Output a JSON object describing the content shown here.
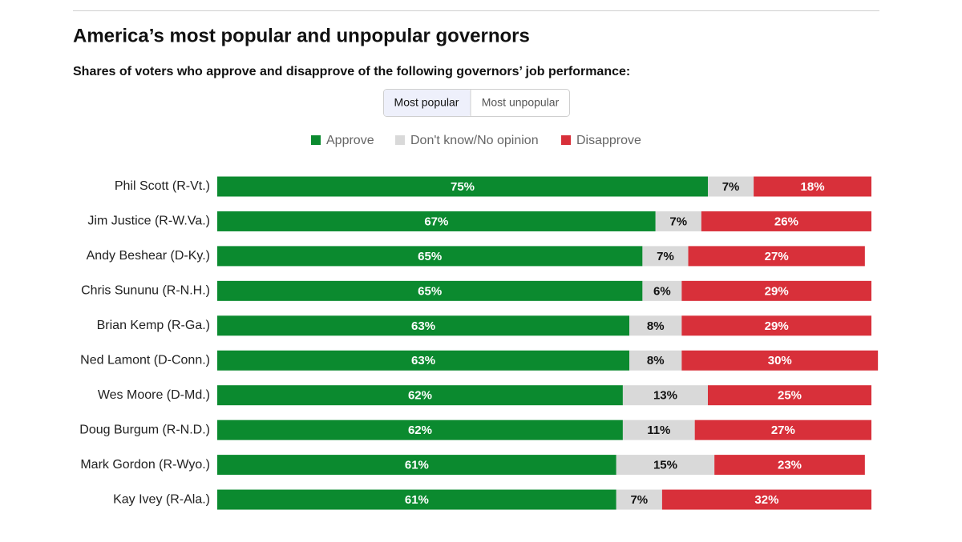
{
  "ui": {
    "tabs": [
      "Most popular",
      "Most unpopular"
    ]
  },
  "chart_data": {
    "type": "stacked-bar-horizontal",
    "title": "America’s most popular and unpopular governors",
    "subtitle": "Shares of voters who approve and disapprove of the following governors’ job performance:",
    "categories": [
      "Phil Scott (R-Vt.)",
      "Jim Justice (R-W.Va.)",
      "Andy Beshear (D-Ky.)",
      "Chris Sununu (R-N.H.)",
      "Brian Kemp (R-Ga.)",
      "Ned Lamont (D-Conn.)",
      "Wes Moore (D-Md.)",
      "Doug Burgum (R-N.D.)",
      "Mark Gordon (R-Wyo.)",
      "Kay Ivey (R-Ala.)"
    ],
    "series": [
      {
        "name": "Approve",
        "color": "#0b8a2f",
        "values": [
          75,
          67,
          65,
          65,
          63,
          63,
          62,
          62,
          61,
          61
        ],
        "value_labels": [
          "75%",
          "67%",
          "65%",
          "65%",
          "63%",
          "63%",
          "62%",
          "62%",
          "61%",
          "61%"
        ]
      },
      {
        "name": "Don't know/No opinion",
        "color": "#d9d9d9",
        "values": [
          7,
          7,
          7,
          6,
          8,
          8,
          13,
          11,
          15,
          7
        ],
        "value_labels": [
          "7%",
          "7%",
          "7%",
          "6%",
          "8%",
          "8%",
          "13%",
          "11%",
          "15%",
          "7%"
        ]
      },
      {
        "name": "Disapprove",
        "color": "#d8303a",
        "values": [
          18,
          26,
          27,
          29,
          29,
          30,
          25,
          27,
          23,
          32
        ],
        "value_labels": [
          "18%",
          "26%",
          "27%",
          "29%",
          "29%",
          "30%",
          "25%",
          "27%",
          "23%",
          "32%"
        ]
      }
    ],
    "xlim": [
      0,
      100
    ],
    "legend": "top"
  }
}
